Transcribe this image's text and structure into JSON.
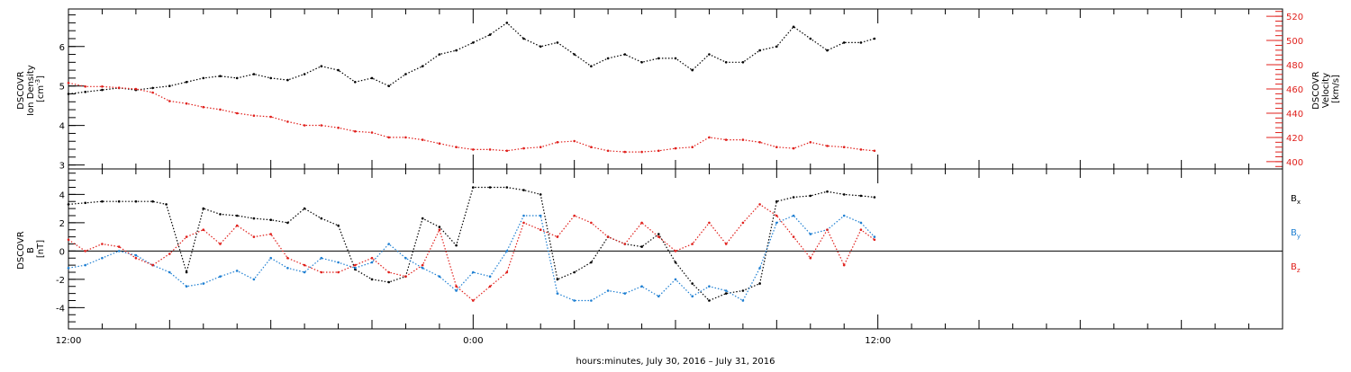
{
  "xaxis": {
    "label": "hours:minutes, July 30, 2016 – July 31, 2016",
    "range_hours": [
      0,
      36
    ],
    "major_ticks": [
      {
        "value": 0,
        "label": "12:00"
      },
      {
        "value": 12,
        "label": "0:00"
      },
      {
        "value": 24,
        "label": "12:00"
      }
    ]
  },
  "chart_data": [
    {
      "type": "scatter",
      "left_axis": {
        "label_lines": [
          "DSCOVR",
          "Ion Density"
        ],
        "unit_base": "[cm",
        "unit_sup": "-3",
        "unit_end": "]",
        "ylim": [
          2.9,
          6.95
        ],
        "ticks": [
          3,
          4,
          5,
          6
        ]
      },
      "right_axis": {
        "label_lines": [
          "DSCOVR",
          "Velocity",
          "[km/s]"
        ],
        "ylim": [
          394,
          526
        ],
        "ticks": [
          400,
          420,
          440,
          460,
          480,
          500,
          520
        ]
      },
      "series": [
        {
          "color": "#000000",
          "axis": "left",
          "x": [
            0.0,
            0.5,
            1.0,
            1.5,
            2.0,
            2.5,
            3.0,
            3.5,
            4.0,
            4.5,
            5.0,
            5.5,
            6.0,
            6.5,
            7.0,
            7.5,
            8.0,
            8.5,
            9.0,
            9.5,
            10.0,
            10.5,
            11.0,
            11.5,
            12.0,
            12.5,
            13.0,
            13.5,
            14.0,
            14.5,
            15.0,
            15.5,
            16.0,
            16.5,
            17.0,
            17.5,
            18.0,
            18.5,
            19.0,
            19.5,
            20.0,
            20.5,
            21.0,
            21.5,
            22.0,
            22.5,
            23.0,
            23.5,
            23.9
          ],
          "y": [
            4.8,
            4.85,
            4.9,
            4.95,
            4.9,
            4.95,
            5.0,
            5.1,
            5.2,
            5.25,
            5.2,
            5.3,
            5.2,
            5.15,
            5.3,
            5.5,
            5.4,
            5.1,
            5.2,
            5.0,
            5.3,
            5.5,
            5.8,
            5.9,
            6.1,
            6.3,
            6.6,
            6.2,
            6.0,
            6.1,
            5.8,
            5.5,
            5.7,
            5.8,
            5.6,
            5.7,
            5.7,
            5.4,
            5.8,
            5.6,
            5.6,
            5.9,
            6.0,
            6.5,
            6.2,
            5.9,
            6.1,
            6.1,
            6.2
          ]
        },
        {
          "color": "#e0201c",
          "axis": "right",
          "x": [
            0.0,
            0.5,
            1.0,
            1.5,
            2.0,
            2.5,
            3.0,
            3.5,
            4.0,
            4.5,
            5.0,
            5.5,
            6.0,
            6.5,
            7.0,
            7.5,
            8.0,
            8.5,
            9.0,
            9.5,
            10.0,
            10.5,
            11.0,
            11.5,
            12.0,
            12.5,
            13.0,
            13.5,
            14.0,
            14.5,
            15.0,
            15.5,
            16.0,
            16.5,
            17.0,
            17.5,
            18.0,
            18.5,
            19.0,
            19.5,
            20.0,
            20.5,
            21.0,
            21.5,
            22.0,
            22.5,
            23.0,
            23.5,
            23.9
          ],
          "y": [
            465,
            462,
            462,
            461,
            460,
            457,
            450,
            448,
            445,
            443,
            440,
            438,
            437,
            433,
            430,
            430,
            428,
            425,
            424,
            420,
            420,
            418,
            415,
            412,
            410,
            410,
            409,
            411,
            412,
            416,
            417,
            412,
            409,
            408,
            408,
            409,
            411,
            412,
            420,
            418,
            418,
            416,
            412,
            411,
            416,
            413,
            412,
            410,
            409
          ]
        }
      ]
    },
    {
      "type": "scatter",
      "left_axis": {
        "label_lines": [
          "DSCOVR",
          "B"
        ],
        "unit": "[nT]",
        "ylim": [
          -5.5,
          5.8
        ],
        "ticks": [
          -4,
          -2,
          0,
          2,
          4
        ]
      },
      "zero_line": true,
      "series": [
        {
          "name": "B",
          "subscript": "x",
          "color": "#000000",
          "x": [
            0.0,
            0.5,
            1.0,
            1.5,
            2.0,
            2.5,
            2.9,
            3.5,
            4.0,
            4.5,
            5.0,
            5.5,
            6.0,
            6.5,
            7.0,
            7.5,
            8.0,
            8.5,
            9.0,
            9.5,
            10.0,
            10.5,
            11.0,
            11.5,
            12.0,
            12.5,
            13.0,
            13.5,
            14.0,
            14.5,
            15.0,
            15.5,
            16.0,
            16.5,
            17.0,
            17.5,
            18.0,
            18.5,
            19.0,
            19.5,
            20.0,
            20.5,
            21.0,
            21.5,
            22.0,
            22.5,
            23.0,
            23.5,
            23.9
          ],
          "y": [
            3.3,
            3.4,
            3.5,
            3.5,
            3.5,
            3.5,
            3.3,
            -1.5,
            3.0,
            2.6,
            2.5,
            2.3,
            2.2,
            2.0,
            3.0,
            2.3,
            1.8,
            -1.3,
            -2.0,
            -2.2,
            -1.8,
            2.3,
            1.7,
            0.4,
            4.5,
            4.5,
            4.5,
            4.3,
            4.0,
            -2.0,
            -1.5,
            -0.8,
            1.0,
            0.5,
            0.3,
            1.2,
            -0.8,
            -2.3,
            -3.5,
            -3.0,
            -2.8,
            -2.3,
            3.5,
            3.8,
            3.9,
            4.2,
            4.0,
            3.9,
            3.8
          ]
        },
        {
          "name": "B",
          "subscript": "y",
          "color": "#1e7fd2",
          "x": [
            0.0,
            0.5,
            1.0,
            1.5,
            2.0,
            2.5,
            3.0,
            3.5,
            4.0,
            4.5,
            5.0,
            5.5,
            6.0,
            6.5,
            7.0,
            7.5,
            8.0,
            8.5,
            9.0,
            9.5,
            10.0,
            10.5,
            11.0,
            11.5,
            12.0,
            12.5,
            13.0,
            13.5,
            14.0,
            14.5,
            15.0,
            15.5,
            16.0,
            16.5,
            17.0,
            17.5,
            18.0,
            18.5,
            19.0,
            19.5,
            20.0,
            20.5,
            21.0,
            21.5,
            22.0,
            22.5,
            23.0,
            23.5,
            23.9
          ],
          "y": [
            -1.2,
            -1.0,
            -0.5,
            0.0,
            -0.3,
            -1.0,
            -1.5,
            -2.5,
            -2.3,
            -1.8,
            -1.4,
            -2.0,
            -0.5,
            -1.2,
            -1.5,
            -0.5,
            -0.8,
            -1.2,
            -0.8,
            0.5,
            -0.5,
            -1.2,
            -1.8,
            -2.8,
            -1.5,
            -1.8,
            0.0,
            2.5,
            2.5,
            -3.0,
            -3.5,
            -3.5,
            -2.8,
            -3.0,
            -2.5,
            -3.2,
            -2.0,
            -3.2,
            -2.5,
            -2.8,
            -3.5,
            -1.2,
            2.0,
            2.5,
            1.2,
            1.5,
            2.5,
            2.0,
            1.0
          ]
        },
        {
          "name": "B",
          "subscript": "z",
          "color": "#e0201c",
          "x": [
            0.0,
            0.5,
            1.0,
            1.5,
            2.0,
            2.5,
            3.0,
            3.5,
            4.0,
            4.5,
            5.0,
            5.5,
            6.0,
            6.5,
            7.0,
            7.5,
            8.0,
            8.5,
            9.0,
            9.5,
            10.0,
            10.5,
            11.0,
            11.5,
            12.0,
            12.5,
            13.0,
            13.5,
            14.0,
            14.5,
            15.0,
            15.5,
            16.0,
            16.5,
            17.0,
            17.5,
            18.0,
            18.5,
            19.0,
            19.5,
            20.0,
            20.5,
            21.0,
            21.5,
            22.0,
            22.5,
            23.0,
            23.5,
            23.9
          ],
          "y": [
            0.8,
            0.0,
            0.5,
            0.3,
            -0.5,
            -1.0,
            -0.2,
            1.0,
            1.5,
            0.5,
            1.8,
            1.0,
            1.2,
            -0.5,
            -1.0,
            -1.5,
            -1.5,
            -1.0,
            -0.5,
            -1.5,
            -1.8,
            -1.0,
            1.5,
            -2.5,
            -3.5,
            -2.5,
            -1.5,
            2.0,
            1.5,
            1.0,
            2.5,
            2.0,
            1.0,
            0.5,
            2.0,
            1.0,
            0.0,
            0.5,
            2.0,
            0.5,
            2.0,
            3.3,
            2.5,
            1.0,
            -0.5,
            1.5,
            -1.0,
            1.5,
            0.8
          ]
        }
      ]
    }
  ]
}
